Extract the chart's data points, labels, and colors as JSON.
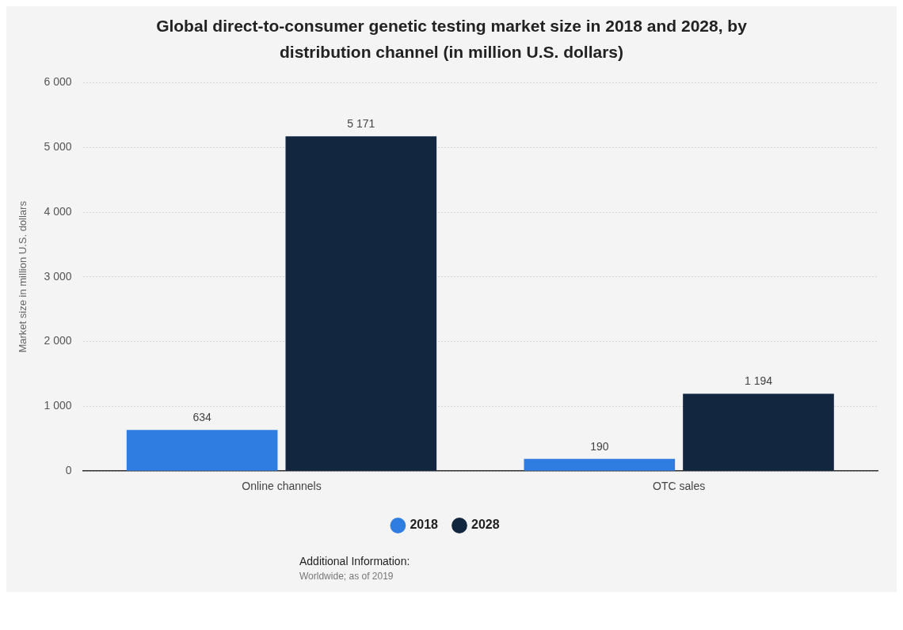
{
  "chart_data": {
    "type": "bar",
    "title": "Global direct-to-consumer genetic testing market size in 2018 and 2028, by distribution channel (in million U.S. dollars)",
    "ylabel": "Market size in million U.S. dollars",
    "categories": [
      "Online channels",
      "OTC sales"
    ],
    "series": [
      {
        "name": "2018",
        "color": "#2f7de1",
        "values": [
          634,
          190
        ],
        "value_labels": [
          "634",
          "190"
        ]
      },
      {
        "name": "2028",
        "color": "#12263f",
        "values": [
          5171,
          1194
        ],
        "value_labels": [
          "5 171",
          "1 194"
        ]
      }
    ],
    "ylim": [
      0,
      6000
    ],
    "yticks": [
      {
        "value": 0,
        "label": "0"
      },
      {
        "value": 1000,
        "label": "1 000"
      },
      {
        "value": 2000,
        "label": "2 000"
      },
      {
        "value": 3000,
        "label": "3 000"
      },
      {
        "value": 4000,
        "label": "4 000"
      },
      {
        "value": 5000,
        "label": "5 000"
      },
      {
        "value": 6000,
        "label": "6 000"
      }
    ],
    "grid": "y",
    "legend": "bottom",
    "annotations": [
      "Additional Information:",
      "Worldwide; as of 2019"
    ]
  }
}
